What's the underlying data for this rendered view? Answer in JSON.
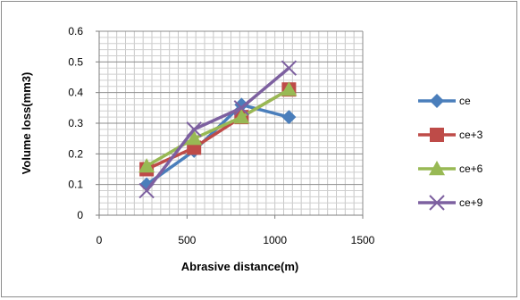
{
  "chart_data": {
    "type": "line",
    "title": "",
    "xlabel": "Abrasive distance(m)",
    "ylabel": "Volume loss(mm3)",
    "xlim": [
      0,
      1500
    ],
    "ylim": [
      0,
      0.6
    ],
    "x_ticks": [
      "0",
      "500",
      "1000",
      "1500"
    ],
    "y_ticks": [
      "0",
      "0.1",
      "0.2",
      "0.3",
      "0.4",
      "0.5",
      "0.6"
    ],
    "grid": true,
    "legend_position": "right",
    "series": [
      {
        "name": "ce",
        "color": "#4a7ebb",
        "marker": "diamond",
        "x": [
          270,
          540,
          810,
          1080
        ],
        "y": [
          0.1,
          0.21,
          0.36,
          0.32
        ]
      },
      {
        "name": "ce+3",
        "color": "#be4b48",
        "marker": "square",
        "x": [
          270,
          540,
          810,
          1080
        ],
        "y": [
          0.15,
          0.22,
          0.32,
          0.41
        ]
      },
      {
        "name": "ce+6",
        "color": "#98b954",
        "marker": "triangle",
        "x": [
          270,
          540,
          810,
          1080
        ],
        "y": [
          0.16,
          0.25,
          0.32,
          0.41
        ]
      },
      {
        "name": "ce+9",
        "color": "#7d60a0",
        "marker": "x",
        "x": [
          270,
          540,
          810,
          1080
        ],
        "y": [
          0.08,
          0.28,
          0.35,
          0.48
        ]
      }
    ]
  }
}
